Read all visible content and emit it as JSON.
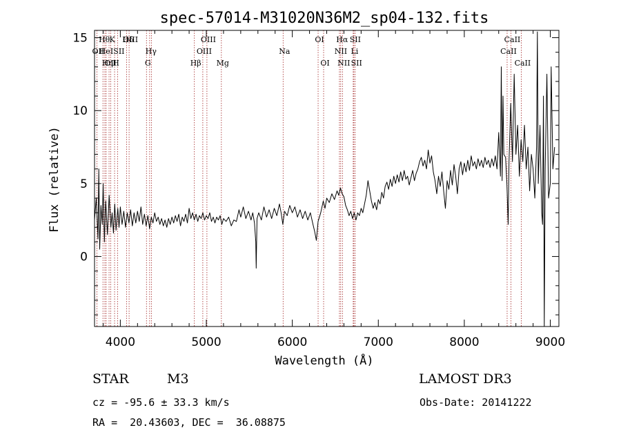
{
  "chart_data": {
    "type": "line",
    "title": "spec-57014-M31020N36M2_sp04-132.fits",
    "xlabel": "Wavelength (Å)",
    "ylabel": "Flux (relative)",
    "xlim": [
      3700,
      9100
    ],
    "ylim": [
      -4.8,
      15.5
    ],
    "x_ticks": [
      4000,
      5000,
      6000,
      7000,
      8000,
      9000
    ],
    "x_tick_labels": [
      "4000",
      "5000",
      "6000",
      "7000",
      "8000",
      "9000"
    ],
    "y_ticks": [
      0,
      5,
      10,
      15
    ],
    "y_tick_labels": [
      "0",
      "5",
      "10",
      "15"
    ],
    "series": [
      {
        "name": "spectrum",
        "points": [
          [
            3700,
            2.5
          ],
          [
            3720,
            4.0
          ],
          [
            3740,
            1.2
          ],
          [
            3750,
            6.0
          ],
          [
            3760,
            0.5
          ],
          [
            3775,
            3.5
          ],
          [
            3790,
            2.2
          ],
          [
            3800,
            5.0
          ],
          [
            3815,
            1.0
          ],
          [
            3830,
            3.8
          ],
          [
            3850,
            1.5
          ],
          [
            3870,
            4.2
          ],
          [
            3890,
            2.0
          ],
          [
            3905,
            3.0
          ],
          [
            3920,
            1.6
          ],
          [
            3935,
            3.6
          ],
          [
            3950,
            1.8
          ],
          [
            3970,
            3.3
          ],
          [
            3985,
            2.0
          ],
          [
            4000,
            3.4
          ],
          [
            4020,
            2.2
          ],
          [
            4040,
            3.1
          ],
          [
            4060,
            2.0
          ],
          [
            4080,
            3.0
          ],
          [
            4100,
            2.3
          ],
          [
            4120,
            3.2
          ],
          [
            4140,
            2.1
          ],
          [
            4160,
            3.0
          ],
          [
            4180,
            2.3
          ],
          [
            4200,
            3.1
          ],
          [
            4220,
            2.4
          ],
          [
            4240,
            3.4
          ],
          [
            4260,
            2.2
          ],
          [
            4280,
            2.9
          ],
          [
            4300,
            2.1
          ],
          [
            4320,
            2.8
          ],
          [
            4340,
            1.9
          ],
          [
            4360,
            2.7
          ],
          [
            4380,
            2.3
          ],
          [
            4400,
            3.0
          ],
          [
            4420,
            2.4
          ],
          [
            4440,
            2.7
          ],
          [
            4460,
            2.2
          ],
          [
            4480,
            2.6
          ],
          [
            4500,
            2.1
          ],
          [
            4520,
            2.5
          ],
          [
            4540,
            2.0
          ],
          [
            4560,
            2.6
          ],
          [
            4580,
            2.2
          ],
          [
            4600,
            2.7
          ],
          [
            4620,
            2.3
          ],
          [
            4640,
            2.8
          ],
          [
            4660,
            2.4
          ],
          [
            4680,
            2.9
          ],
          [
            4700,
            2.1
          ],
          [
            4720,
            2.7
          ],
          [
            4740,
            2.4
          ],
          [
            4760,
            2.9
          ],
          [
            4780,
            2.3
          ],
          [
            4800,
            3.3
          ],
          [
            4820,
            2.6
          ],
          [
            4840,
            3.0
          ],
          [
            4860,
            2.5
          ],
          [
            4880,
            2.9
          ],
          [
            4900,
            2.4
          ],
          [
            4920,
            2.8
          ],
          [
            4940,
            2.6
          ],
          [
            4960,
            3.0
          ],
          [
            4980,
            2.5
          ],
          [
            5000,
            2.8
          ],
          [
            5020,
            2.6
          ],
          [
            5040,
            3.0
          ],
          [
            5060,
            2.4
          ],
          [
            5080,
            2.7
          ],
          [
            5100,
            2.3
          ],
          [
            5120,
            2.7
          ],
          [
            5140,
            2.5
          ],
          [
            5160,
            2.8
          ],
          [
            5180,
            2.2
          ],
          [
            5200,
            2.6
          ],
          [
            5230,
            2.4
          ],
          [
            5260,
            2.7
          ],
          [
            5290,
            2.1
          ],
          [
            5320,
            2.5
          ],
          [
            5350,
            2.4
          ],
          [
            5380,
            3.2
          ],
          [
            5400,
            2.7
          ],
          [
            5430,
            3.4
          ],
          [
            5460,
            2.6
          ],
          [
            5490,
            3.1
          ],
          [
            5520,
            2.5
          ],
          [
            5540,
            3.0
          ],
          [
            5560,
            2.3
          ],
          [
            5575,
            1.0
          ],
          [
            5580,
            -0.8
          ],
          [
            5590,
            2.6
          ],
          [
            5610,
            3.0
          ],
          [
            5640,
            2.5
          ],
          [
            5670,
            3.4
          ],
          [
            5700,
            2.7
          ],
          [
            5730,
            3.2
          ],
          [
            5760,
            2.6
          ],
          [
            5790,
            3.3
          ],
          [
            5820,
            2.8
          ],
          [
            5850,
            3.6
          ],
          [
            5870,
            3.0
          ],
          [
            5890,
            2.2
          ],
          [
            5910,
            3.1
          ],
          [
            5940,
            2.8
          ],
          [
            5970,
            3.5
          ],
          [
            6000,
            3.0
          ],
          [
            6030,
            3.4
          ],
          [
            6060,
            2.7
          ],
          [
            6090,
            3.2
          ],
          [
            6120,
            2.6
          ],
          [
            6150,
            3.1
          ],
          [
            6180,
            2.5
          ],
          [
            6210,
            3.0
          ],
          [
            6240,
            2.2
          ],
          [
            6260,
            1.7
          ],
          [
            6280,
            1.1
          ],
          [
            6300,
            2.4
          ],
          [
            6330,
            3.0
          ],
          [
            6360,
            3.8
          ],
          [
            6380,
            3.3
          ],
          [
            6400,
            4.0
          ],
          [
            6430,
            3.7
          ],
          [
            6460,
            4.3
          ],
          [
            6490,
            3.9
          ],
          [
            6520,
            4.5
          ],
          [
            6540,
            4.2
          ],
          [
            6560,
            4.7
          ],
          [
            6580,
            4.3
          ],
          [
            6600,
            4.1
          ],
          [
            6620,
            3.5
          ],
          [
            6640,
            3.2
          ],
          [
            6660,
            2.8
          ],
          [
            6680,
            3.1
          ],
          [
            6700,
            2.6
          ],
          [
            6720,
            3.0
          ],
          [
            6740,
            2.5
          ],
          [
            6760,
            3.0
          ],
          [
            6780,
            2.8
          ],
          [
            6800,
            3.3
          ],
          [
            6820,
            3.0
          ],
          [
            6840,
            3.6
          ],
          [
            6860,
            4.2
          ],
          [
            6880,
            5.2
          ],
          [
            6900,
            4.5
          ],
          [
            6920,
            3.8
          ],
          [
            6940,
            3.3
          ],
          [
            6960,
            3.7
          ],
          [
            6980,
            3.2
          ],
          [
            7000,
            3.9
          ],
          [
            7020,
            3.6
          ],
          [
            7040,
            4.4
          ],
          [
            7060,
            4.0
          ],
          [
            7080,
            4.8
          ],
          [
            7100,
            5.1
          ],
          [
            7120,
            4.6
          ],
          [
            7140,
            5.3
          ],
          [
            7160,
            4.8
          ],
          [
            7180,
            5.5
          ],
          [
            7200,
            5.0
          ],
          [
            7220,
            5.6
          ],
          [
            7240,
            5.1
          ],
          [
            7260,
            5.8
          ],
          [
            7280,
            5.2
          ],
          [
            7300,
            5.9
          ],
          [
            7320,
            5.3
          ],
          [
            7340,
            5.5
          ],
          [
            7360,
            4.9
          ],
          [
            7380,
            5.4
          ],
          [
            7400,
            5.9
          ],
          [
            7420,
            5.2
          ],
          [
            7440,
            5.7
          ],
          [
            7460,
            6.0
          ],
          [
            7480,
            6.5
          ],
          [
            7500,
            6.8
          ],
          [
            7520,
            6.2
          ],
          [
            7540,
            6.6
          ],
          [
            7560,
            6.0
          ],
          [
            7580,
            7.3
          ],
          [
            7600,
            6.4
          ],
          [
            7620,
            6.9
          ],
          [
            7640,
            5.8
          ],
          [
            7660,
            5.2
          ],
          [
            7680,
            4.3
          ],
          [
            7700,
            5.5
          ],
          [
            7720,
            4.8
          ],
          [
            7740,
            5.8
          ],
          [
            7760,
            4.5
          ],
          [
            7780,
            3.3
          ],
          [
            7800,
            5.2
          ],
          [
            7820,
            4.6
          ],
          [
            7840,
            5.9
          ],
          [
            7860,
            4.9
          ],
          [
            7880,
            6.3
          ],
          [
            7900,
            5.5
          ],
          [
            7920,
            4.3
          ],
          [
            7940,
            6.0
          ],
          [
            7960,
            6.5
          ],
          [
            7980,
            5.6
          ],
          [
            8000,
            6.4
          ],
          [
            8020,
            5.8
          ],
          [
            8040,
            6.6
          ],
          [
            8060,
            5.9
          ],
          [
            8080,
            6.9
          ],
          [
            8100,
            6.2
          ],
          [
            8120,
            6.5
          ],
          [
            8140,
            6.0
          ],
          [
            8160,
            6.7
          ],
          [
            8180,
            6.2
          ],
          [
            8200,
            6.6
          ],
          [
            8220,
            6.1
          ],
          [
            8240,
            6.8
          ],
          [
            8260,
            6.3
          ],
          [
            8280,
            6.6
          ],
          [
            8300,
            6.1
          ],
          [
            8320,
            6.7
          ],
          [
            8340,
            6.2
          ],
          [
            8360,
            6.9
          ],
          [
            8380,
            6.0
          ],
          [
            8400,
            8.5
          ],
          [
            8420,
            5.5
          ],
          [
            8430,
            13.0
          ],
          [
            8440,
            5.2
          ],
          [
            8450,
            11.0
          ],
          [
            8460,
            7.0
          ],
          [
            8480,
            6.8
          ],
          [
            8495,
            5.0
          ],
          [
            8510,
            2.2
          ],
          [
            8520,
            6.5
          ],
          [
            8540,
            10.5
          ],
          [
            8560,
            6.5
          ],
          [
            8580,
            12.5
          ],
          [
            8600,
            7.0
          ],
          [
            8620,
            9.0
          ],
          [
            8640,
            5.5
          ],
          [
            8660,
            8.0
          ],
          [
            8680,
            6.5
          ],
          [
            8700,
            9.0
          ],
          [
            8720,
            6.0
          ],
          [
            8740,
            7.5
          ],
          [
            8760,
            4.5
          ],
          [
            8780,
            7.0
          ],
          [
            8800,
            6.0
          ],
          [
            8820,
            4.0
          ],
          [
            8840,
            7.5
          ],
          [
            8850,
            15.4
          ],
          [
            8860,
            5.0
          ],
          [
            8880,
            9.0
          ],
          [
            8900,
            3.0
          ],
          [
            8910,
            2.2
          ],
          [
            8920,
            11.0
          ],
          [
            8930,
            -4.8
          ],
          [
            8940,
            6.0
          ],
          [
            8960,
            12.5
          ],
          [
            8980,
            4.0
          ],
          [
            9000,
            5.0
          ],
          [
            9010,
            13.0
          ],
          [
            9030,
            6.0
          ],
          [
            9050,
            7.5
          ]
        ]
      }
    ],
    "spectral_lines": [
      {
        "wavelength": 3727,
        "label": "OII",
        "row": 2
      },
      {
        "wavelength": 3798,
        "label": "Hθ",
        "row": 1
      },
      {
        "wavelength": 3820,
        "label": "HeI",
        "row": 2
      },
      {
        "wavelength": 3835,
        "label": "Hη",
        "row": 3
      },
      {
        "wavelength": 3869,
        "label": "OII",
        "row": 3
      },
      {
        "wavelength": 3889,
        "label": "K",
        "row": 1
      },
      {
        "wavelength": 3933,
        "label": "H",
        "row": 3
      },
      {
        "wavelength": 3968,
        "label": "SII",
        "row": 2
      },
      {
        "wavelength": 4072,
        "label": "Hδ",
        "row": 1
      },
      {
        "wavelength": 4102,
        "label": "OIII",
        "row": 1
      },
      {
        "wavelength": 4304,
        "label": "G",
        "row": 3
      },
      {
        "wavelength": 4341,
        "label": "Hγ",
        "row": 2
      },
      {
        "wavelength": 4363,
        "label": "",
        "row": 0
      },
      {
        "wavelength": 4861,
        "label": "Hβ",
        "row": 3
      },
      {
        "wavelength": 4959,
        "label": "OIII",
        "row": 2
      },
      {
        "wavelength": 5007,
        "label": "OIII",
        "row": 1
      },
      {
        "wavelength": 5175,
        "label": "Mg",
        "row": 3
      },
      {
        "wavelength": 5893,
        "label": "Na",
        "row": 2
      },
      {
        "wavelength": 6300,
        "label": "OI",
        "row": 1
      },
      {
        "wavelength": 6364,
        "label": "OI",
        "row": 3
      },
      {
        "wavelength": 6548,
        "label": "NII",
        "row": 2
      },
      {
        "wavelength": 6563,
        "label": "Hα",
        "row": 1
      },
      {
        "wavelength": 6583,
        "label": "NII",
        "row": 3
      },
      {
        "wavelength": 6708,
        "label": "Li",
        "row": 2
      },
      {
        "wavelength": 6716,
        "label": "SII",
        "row": 1
      },
      {
        "wavelength": 6731,
        "label": "SII",
        "row": 3
      },
      {
        "wavelength": 8498,
        "label": "CaII",
        "row": 2
      },
      {
        "wavelength": 8542,
        "label": "CaII",
        "row": 1
      },
      {
        "wavelength": 8662,
        "label": "CaII",
        "row": 3
      }
    ]
  },
  "info": {
    "object_class": "STAR",
    "subclass": "M3",
    "survey": "LAMOST DR3",
    "redshift_text": "cz = -95.6 ± 33.3 km/s",
    "obs_date_text": "Obs-Date: 20141222",
    "coords_text": "RA =  20.43603, DEC =  36.08875"
  },
  "colors": {
    "line_marker": "#a02020",
    "spectrum": "#000000",
    "axis": "#000000"
  }
}
